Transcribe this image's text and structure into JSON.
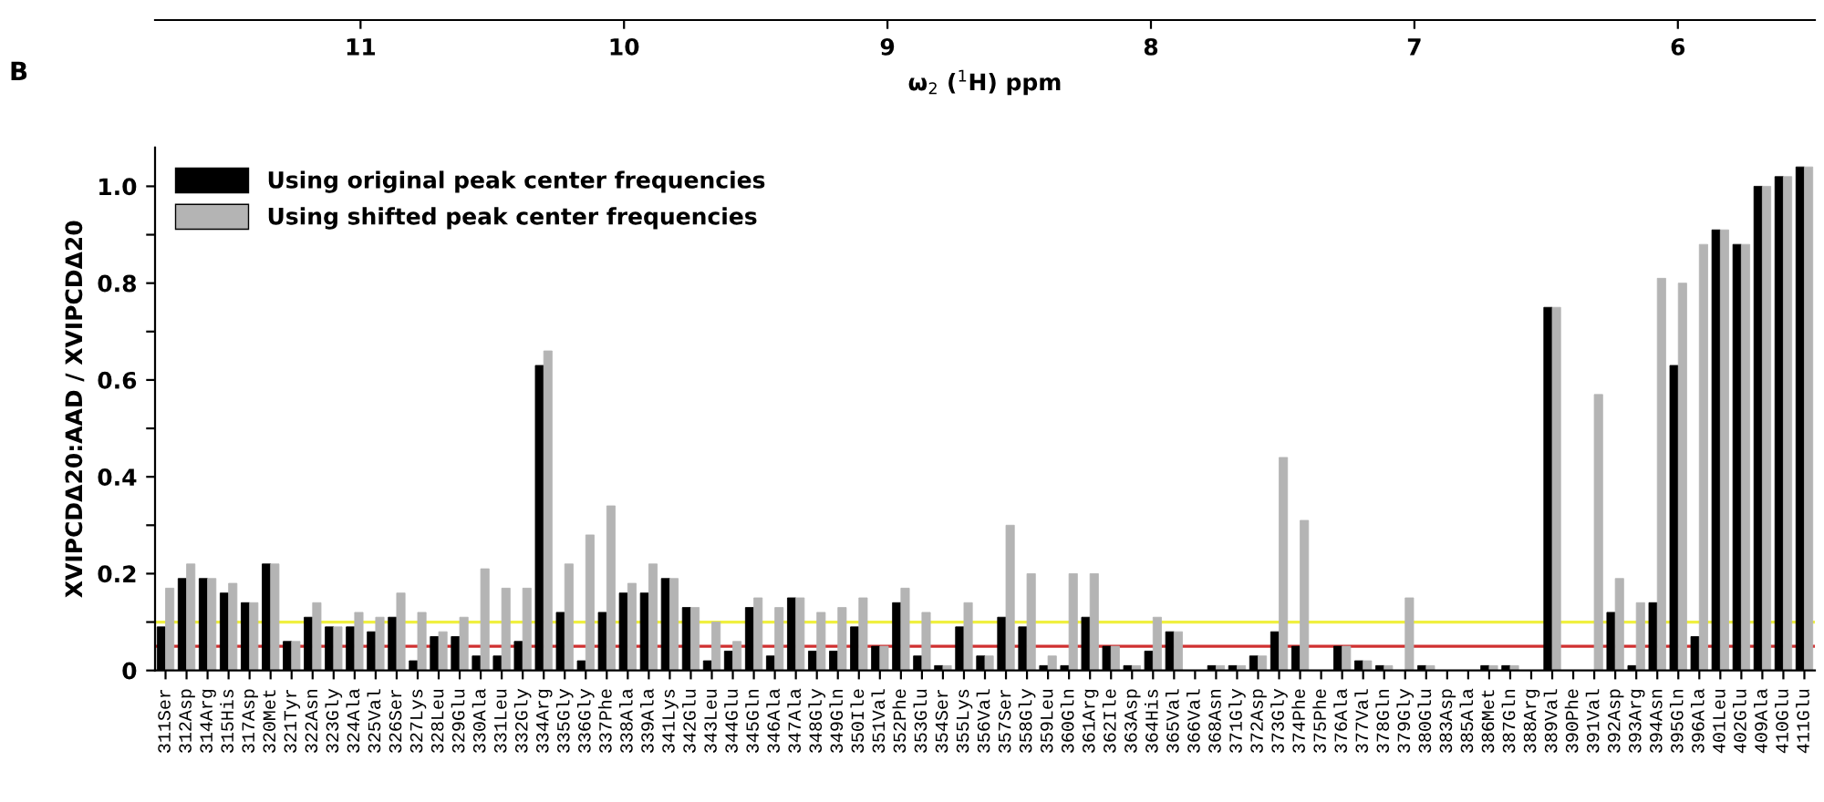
{
  "chart_data": {
    "type": "bar",
    "ylabel": "XVIPCDΔ20:AAD / XVIPCDΔ20",
    "x2label": "ω$_{2}$ ($^{1}$H) ppm",
    "x2lim": [
      11.78,
      5.48
    ],
    "x2ticks": [
      11,
      10,
      9,
      8,
      7,
      6
    ],
    "annotations": [
      "B"
    ],
    "categories": [
      "311Ser",
      "312Asp",
      "314Arg",
      "315His",
      "317Asp",
      "320Met",
      "321Tyr",
      "322Asn",
      "323Gly",
      "324Ala",
      "325Val",
      "326Ser",
      "327Lys",
      "328Leu",
      "329Glu",
      "330Ala",
      "331Leu",
      "332Gly",
      "334Arg",
      "335Gly",
      "336Gly",
      "337Phe",
      "338Ala",
      "339Ala",
      "341Lys",
      "342Glu",
      "343Leu",
      "344Glu",
      "345Gln",
      "346Ala",
      "347Ala",
      "348Gly",
      "349Gln",
      "350Ile",
      "351Val",
      "352Phe",
      "353Glu",
      "354Ser",
      "355Lys",
      "356Val",
      "357Ser",
      "358Gly",
      "359Leu",
      "360Gln",
      "361Arg",
      "362Ile",
      "363Asp",
      "364His",
      "365Val",
      "366Val",
      "368Asn",
      "371Gly",
      "372Asp",
      "373Gly",
      "374Phe",
      "375Phe",
      "376Ala",
      "377Val",
      "378Gln",
      "379Gly",
      "380Glu",
      "383Asp",
      "385Ala",
      "386Met",
      "387Gln",
      "388Arg",
      "389Val",
      "390Phe",
      "391Val",
      "392Asp",
      "393Arg",
      "394Asn",
      "395Gln",
      "396Ala",
      "401Leu",
      "402Glu",
      "409Ala",
      "410Glu",
      "411Glu"
    ],
    "series": [
      {
        "name": "Using original peak center frequencies",
        "color": "#000000",
        "values": [
          0.09,
          0.19,
          0.19,
          0.16,
          0.14,
          0.22,
          0.06,
          0.11,
          0.09,
          0.09,
          0.08,
          0.11,
          0.02,
          0.07,
          0.07,
          0.03,
          0.03,
          0.06,
          0.63,
          0.12,
          0.02,
          0.12,
          0.16,
          0.16,
          0.19,
          0.13,
          0.02,
          0.04,
          0.13,
          0.03,
          0.15,
          0.04,
          0.04,
          0.09,
          0.05,
          0.14,
          0.03,
          0.01,
          0.09,
          0.03,
          0.11,
          0.09,
          0.01,
          0.01,
          0.11,
          0.05,
          0.01,
          0.04,
          0.08,
          0,
          0.01,
          0.01,
          0.03,
          0.08,
          0.05,
          0,
          0.05,
          0.02,
          0.01,
          0,
          0.01,
          0,
          0,
          0.01,
          0.01,
          0,
          0.75,
          0,
          0,
          0.12,
          0.01,
          0.14,
          0.63,
          0.07,
          0.91,
          0.88,
          1.0,
          1.02,
          1.04
        ]
      },
      {
        "name": "Using shifted peak center frequencies",
        "color": "#b4b4b4",
        "values": [
          0.17,
          0.22,
          0.19,
          0.18,
          0.14,
          0.22,
          0.06,
          0.14,
          0.09,
          0.12,
          0.11,
          0.16,
          0.12,
          0.08,
          0.11,
          0.21,
          0.17,
          0.17,
          0.66,
          0.22,
          0.28,
          0.34,
          0.18,
          0.22,
          0.19,
          0.13,
          0.1,
          0.06,
          0.15,
          0.13,
          0.15,
          0.12,
          0.13,
          0.15,
          0.05,
          0.17,
          0.12,
          0.01,
          0.14,
          0.03,
          0.3,
          0.2,
          0.03,
          0.2,
          0.2,
          0.05,
          0.01,
          0.11,
          0.08,
          0,
          0.01,
          0.01,
          0.03,
          0.44,
          0.31,
          0,
          0.05,
          0.02,
          0.01,
          0.15,
          0.01,
          0,
          0,
          0.01,
          0.01,
          0,
          0.75,
          0,
          0.57,
          0.19,
          0.14,
          0.81,
          0.8,
          0.88,
          0.91,
          0.88,
          1.0,
          1.02,
          1.04
        ]
      }
    ],
    "ylim": [
      0,
      1.08
    ],
    "yticks": [
      0,
      {
        "value": 0.1,
        "label": null
      },
      0.2,
      {
        "value": 0.3,
        "label": null
      },
      0.4,
      {
        "value": 0.5,
        "label": null
      },
      0.6,
      {
        "value": 0.7,
        "label": null
      },
      0.8,
      {
        "value": 0.9,
        "label": null
      },
      {
        "value": 1.0,
        "label": "1.0"
      }
    ],
    "ref_lines": [
      {
        "axis": "y",
        "value": 0.1,
        "color": "#f0f040"
      },
      {
        "axis": "y",
        "value": 0.05,
        "color": "#d03030"
      }
    ],
    "legend": "top left",
    "grid": false
  }
}
